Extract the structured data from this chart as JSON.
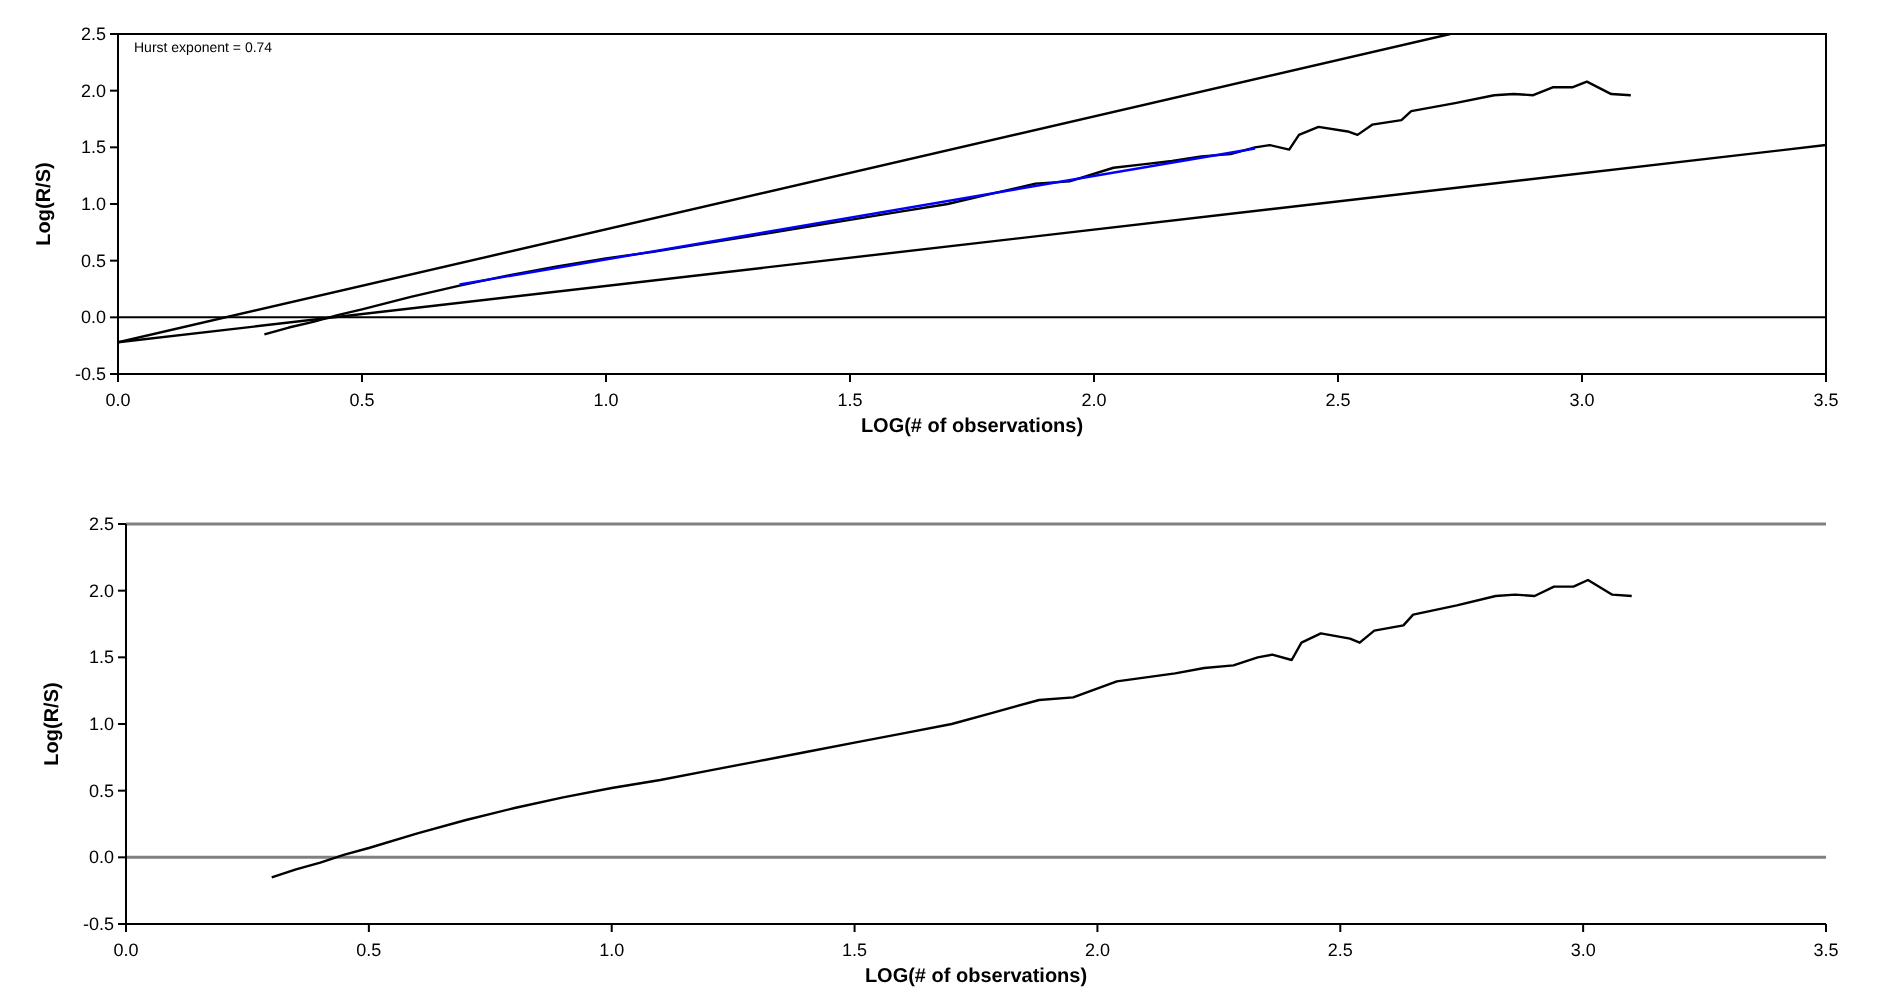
{
  "chart_data": [
    {
      "type": "line",
      "xlabel": "LOG(# of observations)",
      "ylabel": "Log(R/S)",
      "annotations": [
        "Hurst exponent = 0.74"
      ],
      "xlim": [
        0,
        3.5
      ],
      "ylim": [
        -0.5,
        2.5
      ],
      "xticks": [
        {
          "value": 0,
          "label": "0.0"
        },
        0.5,
        {
          "value": 1,
          "label": "1.0"
        },
        1.5,
        {
          "value": 2,
          "label": "2.0"
        },
        2.5,
        {
          "value": 3,
          "label": "3.0"
        },
        3.5
      ],
      "yticks": [
        -0.5,
        {
          "value": 0,
          "label": "0.0"
        },
        0.5,
        {
          "value": 1,
          "label": "1.0"
        },
        1.5,
        {
          "value": 2,
          "label": "2.0"
        },
        2.5
      ],
      "ref_lines": [
        {
          "axis": "y",
          "value": 0,
          "color": "#000000"
        }
      ],
      "series": [
        {
          "color": "#000000",
          "x": [
            0.3,
            0.35,
            0.4,
            0.45,
            0.5,
            0.6,
            0.7,
            0.8,
            0.9,
            1.0,
            1.1,
            1.2,
            1.3,
            1.4,
            1.5,
            1.6,
            1.7,
            1.78,
            1.88,
            1.95,
            2.04,
            2.1,
            2.16,
            2.22,
            2.28,
            2.33,
            2.36,
            2.4,
            2.42,
            2.46,
            2.52,
            2.54,
            2.57,
            2.63,
            2.65,
            2.74,
            2.82,
            2.86,
            2.9,
            2.94,
            2.98,
            3.01,
            3.06,
            3.1
          ],
          "values": [
            -0.15,
            -0.09,
            -0.04,
            0.02,
            0.07,
            0.18,
            0.28,
            0.37,
            0.45,
            0.52,
            0.58,
            0.65,
            0.72,
            0.79,
            0.86,
            0.93,
            1.0,
            1.08,
            1.18,
            1.2,
            1.32,
            1.35,
            1.38,
            1.42,
            1.44,
            1.5,
            1.52,
            1.48,
            1.61,
            1.68,
            1.64,
            1.61,
            1.7,
            1.74,
            1.82,
            1.89,
            1.96,
            1.97,
            1.96,
            2.03,
            2.03,
            2.08,
            1.97,
            1.96
          ]
        },
        {
          "color": "#0000ff",
          "x": [
            0.7,
            2.33
          ],
          "values": [
            0.29,
            1.49
          ]
        },
        {
          "color": "#000000",
          "x": [
            0,
            2.73
          ],
          "values": [
            -0.22,
            2.5
          ]
        },
        {
          "color": "#000000",
          "x": [
            0,
            3.5
          ],
          "values": [
            -0.22,
            1.52
          ]
        }
      ]
    },
    {
      "type": "line",
      "xlabel": "LOG(# of observations)",
      "ylabel": "Log(R/S)",
      "xlim": [
        0,
        3.5
      ],
      "ylim": [
        -0.5,
        2.5
      ],
      "xticks": [
        {
          "value": 0,
          "label": "0.0"
        },
        0.5,
        {
          "value": 1,
          "label": "1.0"
        },
        1.5,
        {
          "value": 2,
          "label": "2.0"
        },
        2.5,
        {
          "value": 3,
          "label": "3.0"
        },
        3.5
      ],
      "yticks": [
        -0.5,
        {
          "value": 0,
          "label": "0.0"
        },
        0.5,
        {
          "value": 1,
          "label": "1.0"
        },
        1.5,
        {
          "value": 2,
          "label": "2.0"
        },
        2.5
      ],
      "ref_lines": [
        {
          "axis": "y",
          "value": 0,
          "color": "#808080"
        }
      ],
      "series": [
        {
          "color": "#000000",
          "x": [
            0.3,
            0.35,
            0.4,
            0.45,
            0.5,
            0.6,
            0.7,
            0.8,
            0.9,
            1.0,
            1.1,
            1.2,
            1.3,
            1.4,
            1.5,
            1.6,
            1.7,
            1.78,
            1.88,
            1.95,
            2.04,
            2.1,
            2.16,
            2.22,
            2.28,
            2.33,
            2.36,
            2.4,
            2.42,
            2.46,
            2.52,
            2.54,
            2.57,
            2.63,
            2.65,
            2.74,
            2.82,
            2.86,
            2.9,
            2.94,
            2.98,
            3.01,
            3.06,
            3.1
          ],
          "values": [
            -0.15,
            -0.09,
            -0.04,
            0.02,
            0.07,
            0.18,
            0.28,
            0.37,
            0.45,
            0.52,
            0.58,
            0.65,
            0.72,
            0.79,
            0.86,
            0.93,
            1.0,
            1.08,
            1.18,
            1.2,
            1.32,
            1.35,
            1.38,
            1.42,
            1.44,
            1.5,
            1.52,
            1.48,
            1.61,
            1.68,
            1.64,
            1.61,
            1.7,
            1.74,
            1.82,
            1.89,
            1.96,
            1.97,
            1.96,
            2.03,
            2.03,
            2.08,
            1.97,
            1.96
          ]
        }
      ]
    }
  ]
}
